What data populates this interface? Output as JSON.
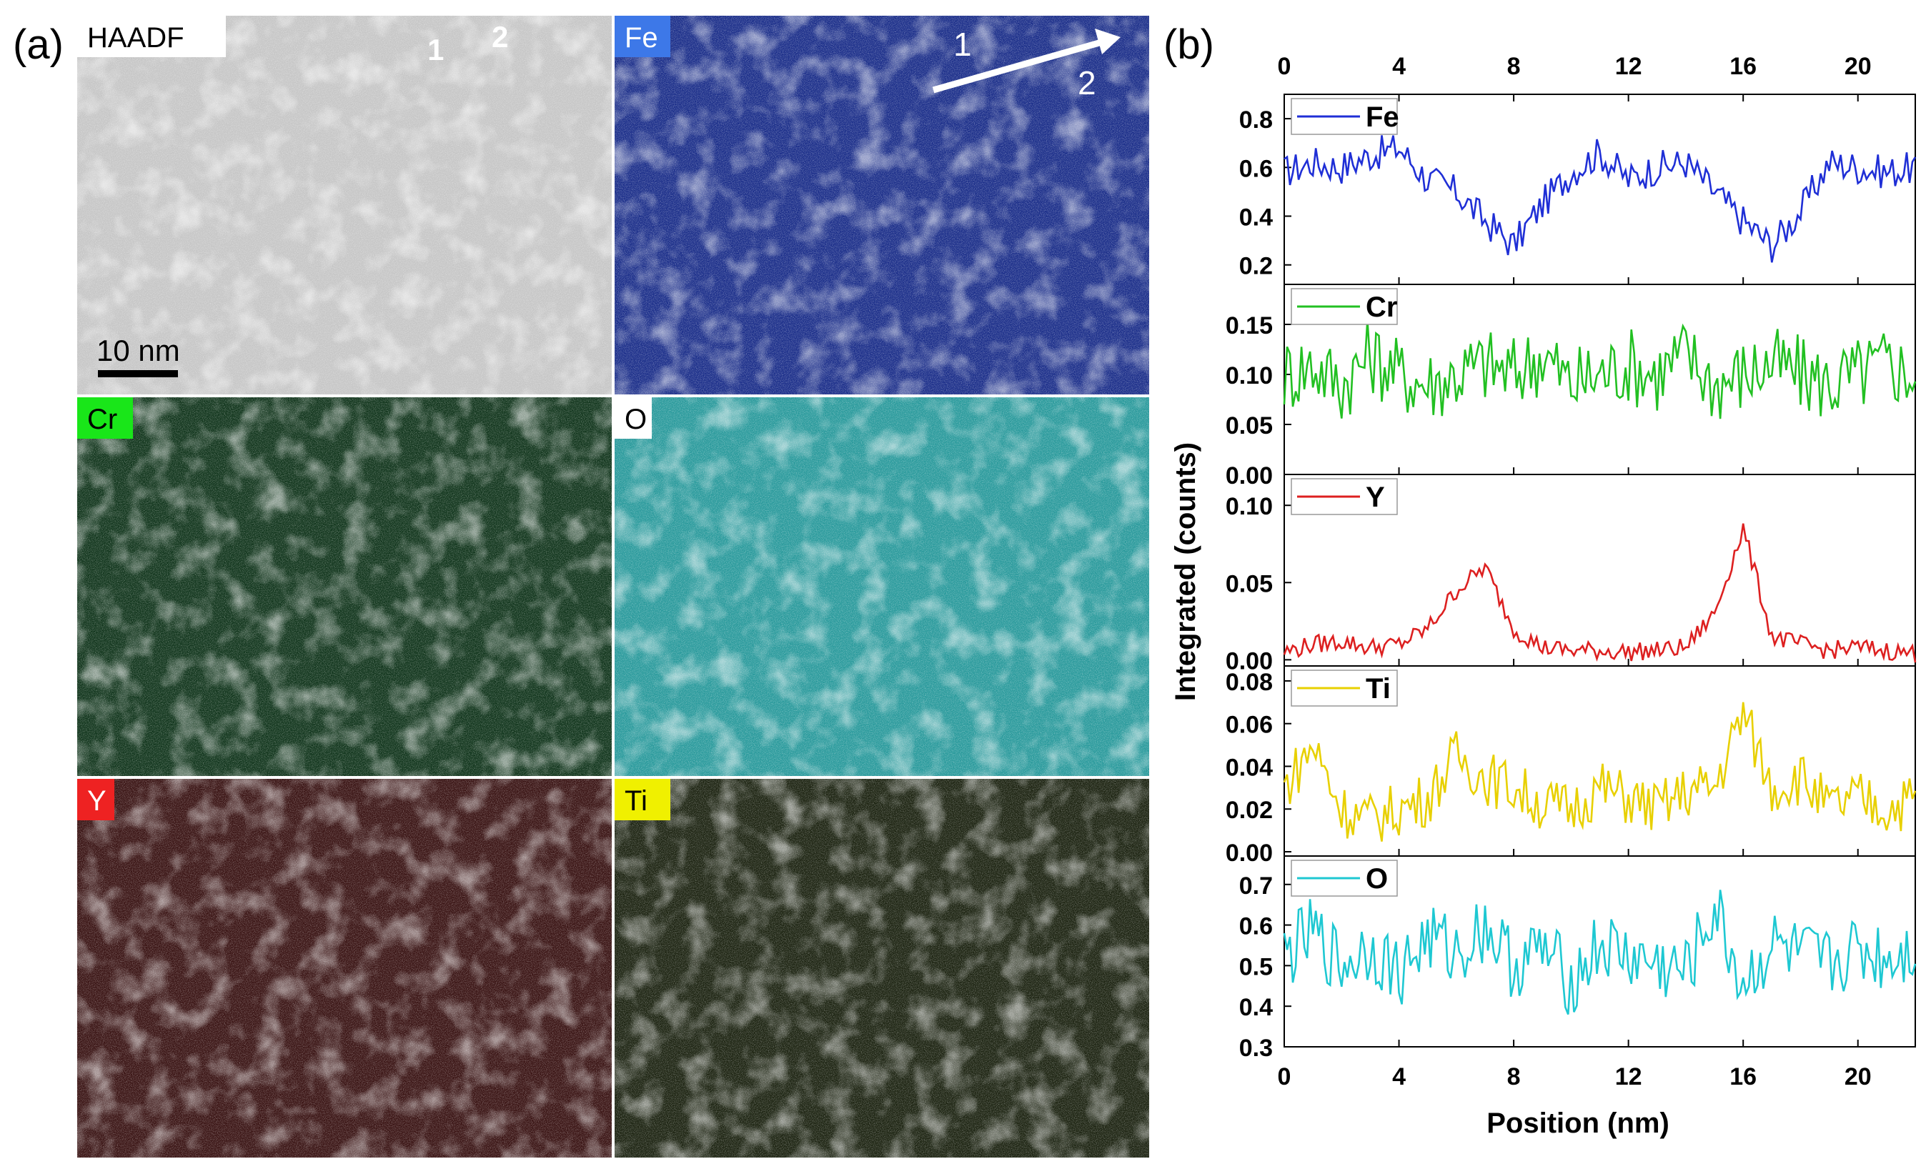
{
  "panel_a": {
    "label": "(a)",
    "maps": [
      {
        "element": "HAADF",
        "tag_bg": "#ffffff",
        "tag_fg": "#000000",
        "base": "#c6c6c6",
        "texture": "#ffffff",
        "spot": "#3c3c3c"
      },
      {
        "element": "Fe",
        "tag_bg": "#3d78e8",
        "tag_fg": "#ffffff",
        "base": "#1c2f8a",
        "texture": "#4060d0",
        "spot": "#0b1340"
      },
      {
        "element": "Cr",
        "tag_bg": "#19e619",
        "tag_fg": "#000000",
        "base": "#12361d",
        "texture": "#2e8a3c",
        "spot": "#0a1f10"
      },
      {
        "element": "O",
        "tag_bg": "#ffffff",
        "tag_fg": "#000000",
        "base": "#2a9a9c",
        "texture": "#5fd3d4",
        "spot": "#1a6a6c"
      },
      {
        "element": "Y",
        "tag_bg": "#ee2222",
        "tag_fg": "#ffffff",
        "base": "#3a1414",
        "texture": "#d82020",
        "spot": "#ff3030"
      },
      {
        "element": "Ti",
        "tag_bg": "#f0f000",
        "tag_fg": "#000000",
        "base": "#1d2412",
        "texture": "#9aa12a",
        "spot": "#c8c830"
      }
    ],
    "scale_bar": "10 nm",
    "points": [
      "1",
      "2"
    ],
    "arrow_labels": [
      "1",
      "2"
    ]
  },
  "chart_data": {
    "type": "line",
    "label": "(b)",
    "xlabel": "Position (nm)",
    "ylabel": "Integrated (counts)",
    "xlim": [
      0,
      22
    ],
    "xticks": [
      0,
      4,
      8,
      12,
      16,
      20
    ],
    "series": [
      {
        "name": "Fe",
        "color": "#1f2fd6",
        "ylim": [
          0.12,
          0.9
        ],
        "yticks": [
          0.8,
          0.6,
          0.4,
          0.2
        ],
        "ytick_labels": [
          "0.8",
          "0.6",
          "0.4",
          "0.2"
        ],
        "x": [
          0,
          1,
          2,
          3,
          4,
          5,
          6,
          7,
          8,
          9,
          10,
          11,
          12,
          13,
          14,
          15,
          16,
          17,
          18,
          19,
          20,
          21,
          22
        ],
        "y": [
          0.58,
          0.62,
          0.6,
          0.65,
          0.68,
          0.55,
          0.5,
          0.38,
          0.28,
          0.45,
          0.58,
          0.66,
          0.55,
          0.6,
          0.62,
          0.5,
          0.38,
          0.28,
          0.42,
          0.62,
          0.6,
          0.58,
          0.6
        ]
      },
      {
        "name": "Cr",
        "color": "#22c022",
        "ylim": [
          0.0,
          0.19
        ],
        "yticks": [
          0.15,
          0.1,
          0.05,
          0.0
        ],
        "ytick_labels": [
          "0.15",
          "0.10",
          "0.05",
          "0.00"
        ],
        "x": [
          0,
          1,
          2,
          3,
          4,
          5,
          6,
          7,
          8,
          9,
          10,
          11,
          12,
          13,
          14,
          15,
          16,
          17,
          18,
          19,
          20,
          21,
          22
        ],
        "y": [
          0.1,
          0.11,
          0.09,
          0.12,
          0.1,
          0.09,
          0.1,
          0.11,
          0.1,
          0.12,
          0.09,
          0.1,
          0.11,
          0.1,
          0.12,
          0.09,
          0.1,
          0.11,
          0.1,
          0.09,
          0.1,
          0.11,
          0.1
        ]
      },
      {
        "name": "Y",
        "color": "#dd2020",
        "ylim": [
          -0.004,
          0.12
        ],
        "yticks": [
          0.1,
          0.05,
          0.0
        ],
        "ytick_labels": [
          "0.10",
          "0.05",
          "0.00"
        ],
        "x": [
          0,
          1,
          2,
          3,
          4,
          5,
          6,
          7,
          8,
          9,
          10,
          11,
          12,
          13,
          14,
          15,
          16,
          17,
          18,
          19,
          20,
          21,
          22
        ],
        "y": [
          0.005,
          0.01,
          0.012,
          0.008,
          0.01,
          0.02,
          0.045,
          0.06,
          0.02,
          0.008,
          0.006,
          0.006,
          0.005,
          0.006,
          0.008,
          0.03,
          0.085,
          0.015,
          0.01,
          0.006,
          0.008,
          0.006,
          0.004
        ]
      },
      {
        "name": "Ti",
        "color": "#e8d000",
        "ylim": [
          -0.002,
          0.087
        ],
        "yticks": [
          0.08,
          0.06,
          0.04,
          0.02,
          0.0
        ],
        "ytick_labels": [
          "0.08",
          "0.06",
          "0.04",
          "0.02",
          "0.00"
        ],
        "x": [
          0,
          1,
          2,
          3,
          4,
          5,
          6,
          7,
          8,
          9,
          10,
          11,
          12,
          13,
          14,
          15,
          16,
          17,
          18,
          19,
          20,
          21,
          22
        ],
        "y": [
          0.03,
          0.05,
          0.02,
          0.015,
          0.02,
          0.025,
          0.045,
          0.035,
          0.03,
          0.022,
          0.02,
          0.03,
          0.025,
          0.02,
          0.028,
          0.03,
          0.065,
          0.03,
          0.035,
          0.02,
          0.025,
          0.02,
          0.025
        ]
      },
      {
        "name": "O",
        "color": "#1ec8d2",
        "ylim": [
          0.3,
          0.77
        ],
        "yticks": [
          0.7,
          0.6,
          0.5,
          0.4,
          0.3
        ],
        "ytick_labels": [
          "0.7",
          "0.6",
          "0.5",
          "0.4",
          "0.3"
        ],
        "x": [
          0,
          1,
          2,
          3,
          4,
          5,
          6,
          7,
          8,
          9,
          10,
          11,
          12,
          13,
          14,
          15,
          16,
          17,
          18,
          19,
          20,
          21,
          22
        ],
        "y": [
          0.52,
          0.58,
          0.5,
          0.55,
          0.48,
          0.57,
          0.53,
          0.6,
          0.5,
          0.54,
          0.46,
          0.55,
          0.52,
          0.5,
          0.48,
          0.64,
          0.45,
          0.55,
          0.52,
          0.5,
          0.54,
          0.52,
          0.55
        ]
      }
    ]
  }
}
